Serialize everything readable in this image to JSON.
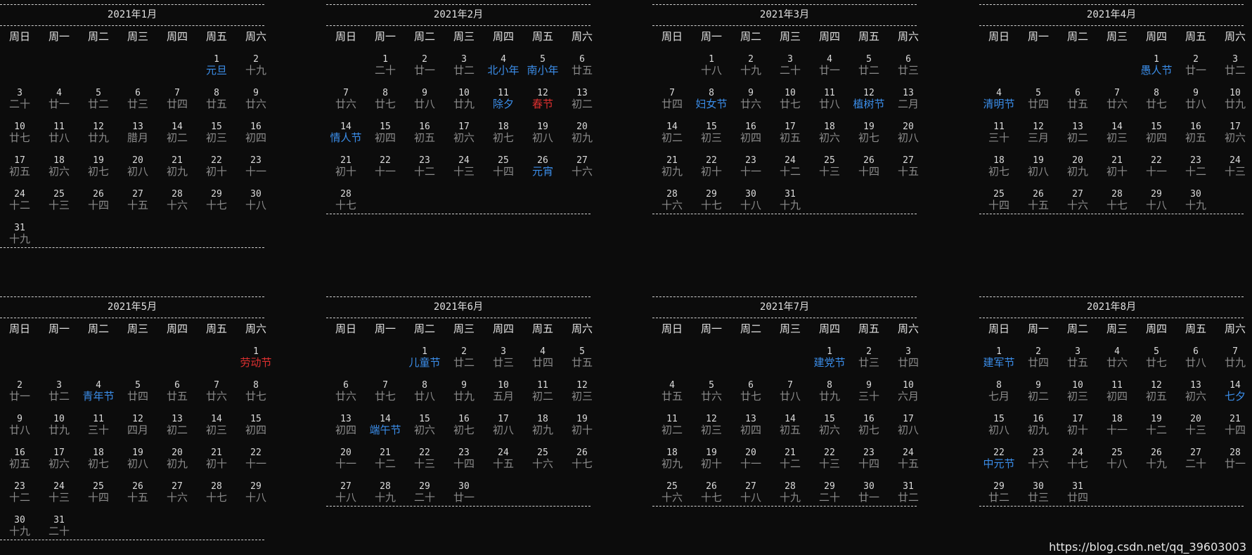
{
  "watermark": "https://blog.csdn.net/qq_39603003",
  "weekdays": [
    "周日",
    "周一",
    "周二",
    "周三",
    "周四",
    "周五",
    "周六"
  ],
  "months": [
    {
      "title": "2021年1月",
      "days": [
        [
          null,
          null,
          null,
          null,
          null,
          [
            "1",
            "元旦",
            "hol"
          ],
          [
            "2",
            "十九"
          ]
        ],
        [
          [
            "3",
            "二十"
          ],
          [
            "4",
            "廿一"
          ],
          [
            "5",
            "廿二"
          ],
          [
            "6",
            "廿三"
          ],
          [
            "7",
            "廿四"
          ],
          [
            "8",
            "廿五"
          ],
          [
            "9",
            "廿六"
          ]
        ],
        [
          [
            "10",
            "廿七"
          ],
          [
            "11",
            "廿八"
          ],
          [
            "12",
            "廿九"
          ],
          [
            "13",
            "腊月"
          ],
          [
            "14",
            "初二"
          ],
          [
            "15",
            "初三"
          ],
          [
            "16",
            "初四"
          ]
        ],
        [
          [
            "17",
            "初五"
          ],
          [
            "18",
            "初六"
          ],
          [
            "19",
            "初七"
          ],
          [
            "20",
            "初八"
          ],
          [
            "21",
            "初九"
          ],
          [
            "22",
            "初十"
          ],
          [
            "23",
            "十一"
          ]
        ],
        [
          [
            "24",
            "十二"
          ],
          [
            "25",
            "十三"
          ],
          [
            "26",
            "十四"
          ],
          [
            "27",
            "十五"
          ],
          [
            "28",
            "十六"
          ],
          [
            "29",
            "十七"
          ],
          [
            "30",
            "十八"
          ]
        ],
        [
          [
            "31",
            "十九"
          ],
          null,
          null,
          null,
          null,
          null,
          null
        ]
      ]
    },
    {
      "title": "2021年2月",
      "days": [
        [
          null,
          [
            "1",
            "二十"
          ],
          [
            "2",
            "廿一"
          ],
          [
            "3",
            "廿二"
          ],
          [
            "4",
            "北小年",
            "hol"
          ],
          [
            "5",
            "南小年",
            "hol"
          ],
          [
            "6",
            "廿五"
          ]
        ],
        [
          [
            "7",
            "廿六"
          ],
          [
            "8",
            "廿七"
          ],
          [
            "9",
            "廿八"
          ],
          [
            "10",
            "廿九"
          ],
          [
            "11",
            "除夕",
            "hol"
          ],
          [
            "12",
            "春节",
            "red"
          ],
          [
            "13",
            "初二"
          ]
        ],
        [
          [
            "14",
            "情人节",
            "hol"
          ],
          [
            "15",
            "初四"
          ],
          [
            "16",
            "初五"
          ],
          [
            "17",
            "初六"
          ],
          [
            "18",
            "初七"
          ],
          [
            "19",
            "初八"
          ],
          [
            "20",
            "初九"
          ]
        ],
        [
          [
            "21",
            "初十"
          ],
          [
            "22",
            "十一"
          ],
          [
            "23",
            "十二"
          ],
          [
            "24",
            "十三"
          ],
          [
            "25",
            "十四"
          ],
          [
            "26",
            "元宵",
            "hol"
          ],
          [
            "27",
            "十六"
          ]
        ],
        [
          [
            "28",
            "十七"
          ],
          null,
          null,
          null,
          null,
          null,
          null
        ]
      ]
    },
    {
      "title": "2021年3月",
      "days": [
        [
          null,
          [
            "1",
            "十八"
          ],
          [
            "2",
            "十九"
          ],
          [
            "3",
            "二十"
          ],
          [
            "4",
            "廿一"
          ],
          [
            "5",
            "廿二"
          ],
          [
            "6",
            "廿三"
          ]
        ],
        [
          [
            "7",
            "廿四"
          ],
          [
            "8",
            "妇女节",
            "hol"
          ],
          [
            "9",
            "廿六"
          ],
          [
            "10",
            "廿七"
          ],
          [
            "11",
            "廿八"
          ],
          [
            "12",
            "植树节",
            "hol"
          ],
          [
            "13",
            "二月"
          ]
        ],
        [
          [
            "14",
            "初二"
          ],
          [
            "15",
            "初三"
          ],
          [
            "16",
            "初四"
          ],
          [
            "17",
            "初五"
          ],
          [
            "18",
            "初六"
          ],
          [
            "19",
            "初七"
          ],
          [
            "20",
            "初八"
          ]
        ],
        [
          [
            "21",
            "初九"
          ],
          [
            "22",
            "初十"
          ],
          [
            "23",
            "十一"
          ],
          [
            "24",
            "十二"
          ],
          [
            "25",
            "十三"
          ],
          [
            "26",
            "十四"
          ],
          [
            "27",
            "十五"
          ]
        ],
        [
          [
            "28",
            "十六"
          ],
          [
            "29",
            "十七"
          ],
          [
            "30",
            "十八"
          ],
          [
            "31",
            "十九"
          ],
          null,
          null,
          null
        ]
      ]
    },
    {
      "title": "2021年4月",
      "days": [
        [
          null,
          null,
          null,
          null,
          [
            "1",
            "愚人节",
            "hol"
          ],
          [
            "2",
            "廿一"
          ],
          [
            "3",
            "廿二"
          ]
        ],
        [
          [
            "4",
            "清明节",
            "hol"
          ],
          [
            "5",
            "廿四"
          ],
          [
            "6",
            "廿五"
          ],
          [
            "7",
            "廿六"
          ],
          [
            "8",
            "廿七"
          ],
          [
            "9",
            "廿八"
          ],
          [
            "10",
            "廿九"
          ]
        ],
        [
          [
            "11",
            "三十"
          ],
          [
            "12",
            "三月"
          ],
          [
            "13",
            "初二"
          ],
          [
            "14",
            "初三"
          ],
          [
            "15",
            "初四"
          ],
          [
            "16",
            "初五"
          ],
          [
            "17",
            "初六"
          ]
        ],
        [
          [
            "18",
            "初七"
          ],
          [
            "19",
            "初八"
          ],
          [
            "20",
            "初九"
          ],
          [
            "21",
            "初十"
          ],
          [
            "22",
            "十一"
          ],
          [
            "23",
            "十二"
          ],
          [
            "24",
            "十三"
          ]
        ],
        [
          [
            "25",
            "十四"
          ],
          [
            "26",
            "十五"
          ],
          [
            "27",
            "十六"
          ],
          [
            "28",
            "十七"
          ],
          [
            "29",
            "十八"
          ],
          [
            "30",
            "十九"
          ],
          null
        ]
      ]
    },
    {
      "title": "2021年5月",
      "days": [
        [
          null,
          null,
          null,
          null,
          null,
          null,
          [
            "1",
            "劳动节",
            "red"
          ]
        ],
        [
          [
            "2",
            "廿一"
          ],
          [
            "3",
            "廿二"
          ],
          [
            "4",
            "青年节",
            "hol"
          ],
          [
            "5",
            "廿四"
          ],
          [
            "6",
            "廿五"
          ],
          [
            "7",
            "廿六"
          ],
          [
            "8",
            "廿七"
          ]
        ],
        [
          [
            "9",
            "廿八"
          ],
          [
            "10",
            "廿九"
          ],
          [
            "11",
            "三十"
          ],
          [
            "12",
            "四月"
          ],
          [
            "13",
            "初二"
          ],
          [
            "14",
            "初三"
          ],
          [
            "15",
            "初四"
          ]
        ],
        [
          [
            "16",
            "初五"
          ],
          [
            "17",
            "初六"
          ],
          [
            "18",
            "初七"
          ],
          [
            "19",
            "初八"
          ],
          [
            "20",
            "初九"
          ],
          [
            "21",
            "初十"
          ],
          [
            "22",
            "十一"
          ]
        ],
        [
          [
            "23",
            "十二"
          ],
          [
            "24",
            "十三"
          ],
          [
            "25",
            "十四"
          ],
          [
            "26",
            "十五"
          ],
          [
            "27",
            "十六"
          ],
          [
            "28",
            "十七"
          ],
          [
            "29",
            "十八"
          ]
        ],
        [
          [
            "30",
            "十九"
          ],
          [
            "31",
            "二十"
          ],
          null,
          null,
          null,
          null,
          null
        ]
      ]
    },
    {
      "title": "2021年6月",
      "days": [
        [
          null,
          null,
          [
            "1",
            "儿童节",
            "hol"
          ],
          [
            "2",
            "廿二"
          ],
          [
            "3",
            "廿三"
          ],
          [
            "4",
            "廿四"
          ],
          [
            "5",
            "廿五"
          ]
        ],
        [
          [
            "6",
            "廿六"
          ],
          [
            "7",
            "廿七"
          ],
          [
            "8",
            "廿八"
          ],
          [
            "9",
            "廿九"
          ],
          [
            "10",
            "五月"
          ],
          [
            "11",
            "初二"
          ],
          [
            "12",
            "初三"
          ]
        ],
        [
          [
            "13",
            "初四"
          ],
          [
            "14",
            "端午节",
            "hol"
          ],
          [
            "15",
            "初六"
          ],
          [
            "16",
            "初七"
          ],
          [
            "17",
            "初八"
          ],
          [
            "18",
            "初九"
          ],
          [
            "19",
            "初十"
          ]
        ],
        [
          [
            "20",
            "十一"
          ],
          [
            "21",
            "十二"
          ],
          [
            "22",
            "十三"
          ],
          [
            "23",
            "十四"
          ],
          [
            "24",
            "十五"
          ],
          [
            "25",
            "十六"
          ],
          [
            "26",
            "十七"
          ]
        ],
        [
          [
            "27",
            "十八"
          ],
          [
            "28",
            "十九"
          ],
          [
            "29",
            "二十"
          ],
          [
            "30",
            "廿一"
          ],
          null,
          null,
          null
        ]
      ]
    },
    {
      "title": "2021年7月",
      "days": [
        [
          null,
          null,
          null,
          null,
          [
            "1",
            "建党节",
            "hol"
          ],
          [
            "2",
            "廿三"
          ],
          [
            "3",
            "廿四"
          ]
        ],
        [
          [
            "4",
            "廿五"
          ],
          [
            "5",
            "廿六"
          ],
          [
            "6",
            "廿七"
          ],
          [
            "7",
            "廿八"
          ],
          [
            "8",
            "廿九"
          ],
          [
            "9",
            "三十"
          ],
          [
            "10",
            "六月"
          ]
        ],
        [
          [
            "11",
            "初二"
          ],
          [
            "12",
            "初三"
          ],
          [
            "13",
            "初四"
          ],
          [
            "14",
            "初五"
          ],
          [
            "15",
            "初六"
          ],
          [
            "16",
            "初七"
          ],
          [
            "17",
            "初八"
          ]
        ],
        [
          [
            "18",
            "初九"
          ],
          [
            "19",
            "初十"
          ],
          [
            "20",
            "十一"
          ],
          [
            "21",
            "十二"
          ],
          [
            "22",
            "十三"
          ],
          [
            "23",
            "十四"
          ],
          [
            "24",
            "十五"
          ]
        ],
        [
          [
            "25",
            "十六"
          ],
          [
            "26",
            "十七"
          ],
          [
            "27",
            "十八"
          ],
          [
            "28",
            "十九"
          ],
          [
            "29",
            "二十"
          ],
          [
            "30",
            "廿一"
          ],
          [
            "31",
            "廿二"
          ]
        ]
      ]
    },
    {
      "title": "2021年8月",
      "days": [
        [
          [
            "1",
            "建军节",
            "hol"
          ],
          [
            "2",
            "廿四"
          ],
          [
            "3",
            "廿五"
          ],
          [
            "4",
            "廿六"
          ],
          [
            "5",
            "廿七"
          ],
          [
            "6",
            "廿八"
          ],
          [
            "7",
            "廿九"
          ]
        ],
        [
          [
            "8",
            "七月"
          ],
          [
            "9",
            "初二"
          ],
          [
            "10",
            "初三"
          ],
          [
            "11",
            "初四"
          ],
          [
            "12",
            "初五"
          ],
          [
            "13",
            "初六"
          ],
          [
            "14",
            "七夕",
            "hol"
          ]
        ],
        [
          [
            "15",
            "初八"
          ],
          [
            "16",
            "初九"
          ],
          [
            "17",
            "初十"
          ],
          [
            "18",
            "十一"
          ],
          [
            "19",
            "十二"
          ],
          [
            "20",
            "十三"
          ],
          [
            "21",
            "十四"
          ]
        ],
        [
          [
            "22",
            "中元节",
            "hol"
          ],
          [
            "23",
            "十六"
          ],
          [
            "24",
            "十七"
          ],
          [
            "25",
            "十八"
          ],
          [
            "26",
            "十九"
          ],
          [
            "27",
            "二十"
          ],
          [
            "28",
            "廿一"
          ]
        ],
        [
          [
            "29",
            "廿二"
          ],
          [
            "30",
            "廿三"
          ],
          [
            "31",
            "廿四"
          ],
          null,
          null,
          null,
          null
        ]
      ]
    }
  ]
}
